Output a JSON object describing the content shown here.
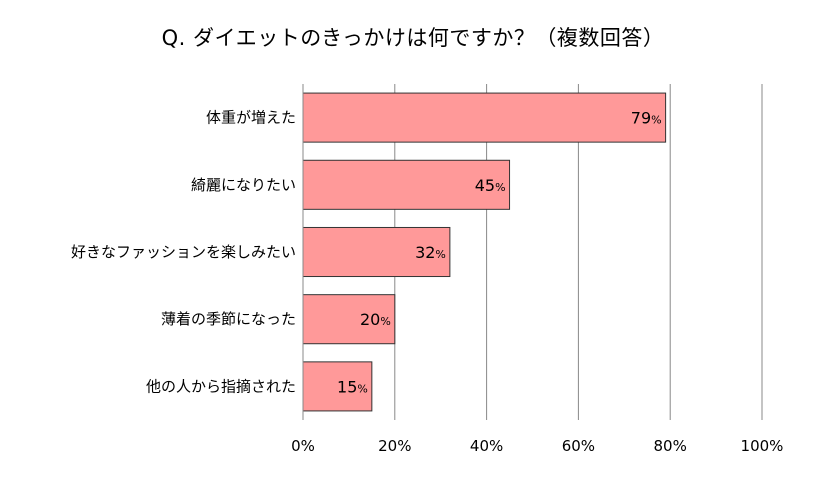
{
  "chart_data": {
    "type": "bar",
    "orientation": "horizontal",
    "title": "Q. ダイエットのきっかけは何ですか？（複数回答）",
    "categories": [
      "体重が増えた",
      "綺麗になりたい",
      "好きなファッションを楽しみたい",
      "薄着の季節になった",
      "他の人から指摘された"
    ],
    "values": [
      79,
      45,
      32,
      20,
      15
    ],
    "value_unit": "%",
    "xlim": [
      0,
      100
    ],
    "x_ticks": [
      0,
      20,
      40,
      60,
      80,
      100
    ],
    "x_tick_labels": [
      "0%",
      "20%",
      "40%",
      "60%",
      "80%",
      "100%"
    ],
    "grid": true,
    "legend": "none",
    "bar_color": "#ff9999",
    "bar_edge_color": "#333333",
    "grid_color": "#888888"
  }
}
